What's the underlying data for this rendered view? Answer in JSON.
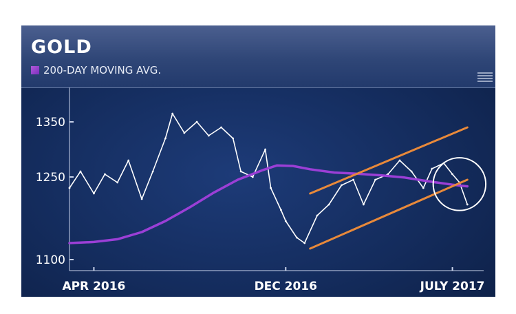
{
  "chart_data": {
    "type": "line",
    "title": "GOLD",
    "legend": [
      {
        "name": "200-DAY MOVING AVG.",
        "color": "#9b3fd6"
      }
    ],
    "legend_placement": "top-left",
    "grid": false,
    "ylim": [
      1080,
      1400
    ],
    "yticks": [
      1100,
      1250,
      1350
    ],
    "xticks": [
      "APR 2016",
      "DEC 2016",
      "JULY 2017"
    ],
    "xlim": [
      "2016-03-01",
      "2017-08-01"
    ],
    "xtick_dates": [
      "2016-04-01",
      "2016-12-01",
      "2017-07-01"
    ],
    "series": [
      {
        "name": "Gold price",
        "color": "#ffffff",
        "dates": [
          "2016-03-01",
          "2016-03-15",
          "2016-04-01",
          "2016-04-15",
          "2016-05-01",
          "2016-05-15",
          "2016-06-01",
          "2016-06-15",
          "2016-07-01",
          "2016-07-10",
          "2016-07-25",
          "2016-08-10",
          "2016-08-25",
          "2016-09-10",
          "2016-09-25",
          "2016-10-05",
          "2016-10-20",
          "2016-11-05",
          "2016-11-12",
          "2016-11-25",
          "2016-12-01",
          "2016-12-15",
          "2016-12-25",
          "2017-01-10",
          "2017-01-25",
          "2017-02-10",
          "2017-02-25",
          "2017-03-10",
          "2017-03-25",
          "2017-04-10",
          "2017-04-25",
          "2017-05-10",
          "2017-05-25",
          "2017-06-05",
          "2017-06-20",
          "2017-07-01",
          "2017-07-10",
          "2017-07-20"
        ],
        "values": [
          1230,
          1260,
          1220,
          1255,
          1240,
          1280,
          1210,
          1260,
          1320,
          1365,
          1330,
          1350,
          1325,
          1340,
          1320,
          1260,
          1250,
          1300,
          1230,
          1190,
          1170,
          1140,
          1130,
          1180,
          1200,
          1235,
          1245,
          1200,
          1245,
          1255,
          1280,
          1260,
          1230,
          1265,
          1275,
          1255,
          1240,
          1200
        ]
      },
      {
        "name": "200-DAY MOVING AVG.",
        "color": "#9b3fd6",
        "dates": [
          "2016-03-01",
          "2016-04-01",
          "2016-05-01",
          "2016-06-01",
          "2016-07-01",
          "2016-08-01",
          "2016-09-01",
          "2016-10-01",
          "2016-11-01",
          "2016-11-20",
          "2016-12-10",
          "2017-01-01",
          "2017-02-01",
          "2017-03-01",
          "2017-04-01",
          "2017-05-01",
          "2017-06-01",
          "2017-07-01",
          "2017-07-20"
        ],
        "values": [
          1130,
          1132,
          1137,
          1150,
          1170,
          1195,
          1222,
          1245,
          1262,
          1271,
          1270,
          1264,
          1258,
          1256,
          1253,
          1249,
          1242,
          1236,
          1233
        ]
      }
    ],
    "annotations": [
      {
        "type": "trendline",
        "color": "#e8893a",
        "from": [
          "2017-01-01",
          1220
        ],
        "to": [
          "2017-07-20",
          1340
        ]
      },
      {
        "type": "trendline",
        "color": "#e8893a",
        "from": [
          "2017-01-01",
          1120
        ],
        "to": [
          "2017-07-20",
          1245
        ]
      },
      {
        "type": "circle",
        "color": "#ffffff",
        "center": [
          "2017-07-10",
          1237
        ],
        "radius_months": 1.1
      }
    ]
  }
}
